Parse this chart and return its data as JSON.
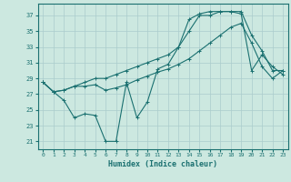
{
  "xlabel": "Humidex (Indice chaleur)",
  "bg_color": "#cce8e0",
  "grid_color": "#aacccc",
  "line_color": "#1a7070",
  "xlim": [
    -0.5,
    23.5
  ],
  "ylim": [
    20.0,
    38.5
  ],
  "yticks": [
    21,
    23,
    25,
    27,
    29,
    31,
    33,
    35,
    37
  ],
  "xticks": [
    0,
    1,
    2,
    3,
    4,
    5,
    6,
    7,
    8,
    9,
    10,
    11,
    12,
    13,
    14,
    15,
    16,
    17,
    18,
    19,
    20,
    21,
    22,
    23
  ],
  "line1_x": [
    0,
    1,
    2,
    3,
    4,
    5,
    6,
    7,
    8,
    9,
    10,
    11,
    12,
    13,
    14,
    15,
    16,
    17,
    18,
    19,
    20,
    21,
    22,
    23
  ],
  "line1_y": [
    28.5,
    27.3,
    26.2,
    24.0,
    24.5,
    24.3,
    21.0,
    21.0,
    28.5,
    24.0,
    26.0,
    30.2,
    30.8,
    33.0,
    36.5,
    37.2,
    37.5,
    37.5,
    37.5,
    37.2,
    30.0,
    32.0,
    30.5,
    29.5
  ],
  "line2_x": [
    0,
    1,
    2,
    3,
    4,
    5,
    6,
    7,
    8,
    9,
    10,
    11,
    12,
    13,
    14,
    15,
    16,
    17,
    18,
    19,
    20,
    21,
    22,
    23
  ],
  "line2_y": [
    28.5,
    27.3,
    27.5,
    28.0,
    28.5,
    29.0,
    29.0,
    29.5,
    30.0,
    30.5,
    31.0,
    31.5,
    32.0,
    33.0,
    35.0,
    37.0,
    37.0,
    37.5,
    37.5,
    37.5,
    34.5,
    32.5,
    30.0,
    30.0
  ],
  "line3_x": [
    0,
    1,
    2,
    3,
    4,
    5,
    6,
    7,
    8,
    9,
    10,
    11,
    12,
    13,
    14,
    15,
    16,
    17,
    18,
    19,
    20,
    21,
    22,
    23
  ],
  "line3_y": [
    28.5,
    27.3,
    27.5,
    28.0,
    28.0,
    28.2,
    27.5,
    27.8,
    28.2,
    28.8,
    29.3,
    29.8,
    30.2,
    30.8,
    31.5,
    32.5,
    33.5,
    34.5,
    35.5,
    36.0,
    33.5,
    30.5,
    29.0,
    30.0
  ]
}
